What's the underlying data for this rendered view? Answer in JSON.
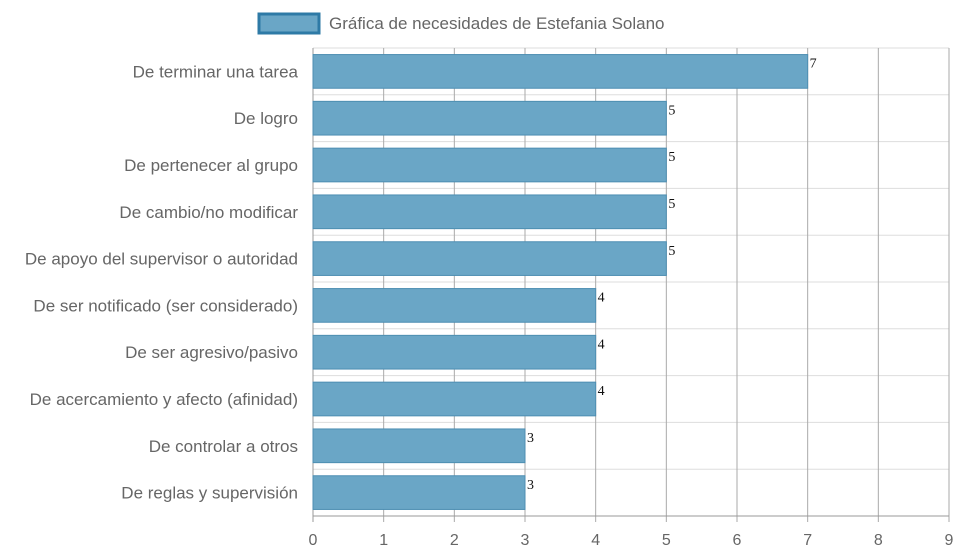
{
  "chart_data": {
    "type": "bar",
    "orientation": "horizontal",
    "categories": [
      "De terminar una tarea",
      "De logro",
      "De pertenecer al grupo",
      "De cambio/no modificar",
      "De apoyo del supervisor o autoridad",
      "De ser notificado (ser considerado)",
      "De ser agresivo/pasivo",
      "De acercamiento y afecto (afinidad)",
      "De controlar a otros",
      "De reglas y supervisión"
    ],
    "series": [
      {
        "name": "Gráfica de necesidades de Estefania Solano",
        "values": [
          7,
          5,
          5,
          5,
          5,
          4,
          4,
          4,
          3,
          3
        ]
      }
    ],
    "xlim": [
      0,
      9
    ],
    "x_ticks": [
      "0",
      "1",
      "2",
      "3",
      "4",
      "5",
      "6",
      "7",
      "8",
      "9"
    ],
    "grid": true,
    "legend_position": "top",
    "data_labels": true,
    "colors": {
      "bar_fill": "#6aa6c6",
      "bar_border": "#4d8eb2",
      "legend_border": "#2e7aa6",
      "grid": "#dddddd",
      "axis_text": "#666666"
    }
  }
}
